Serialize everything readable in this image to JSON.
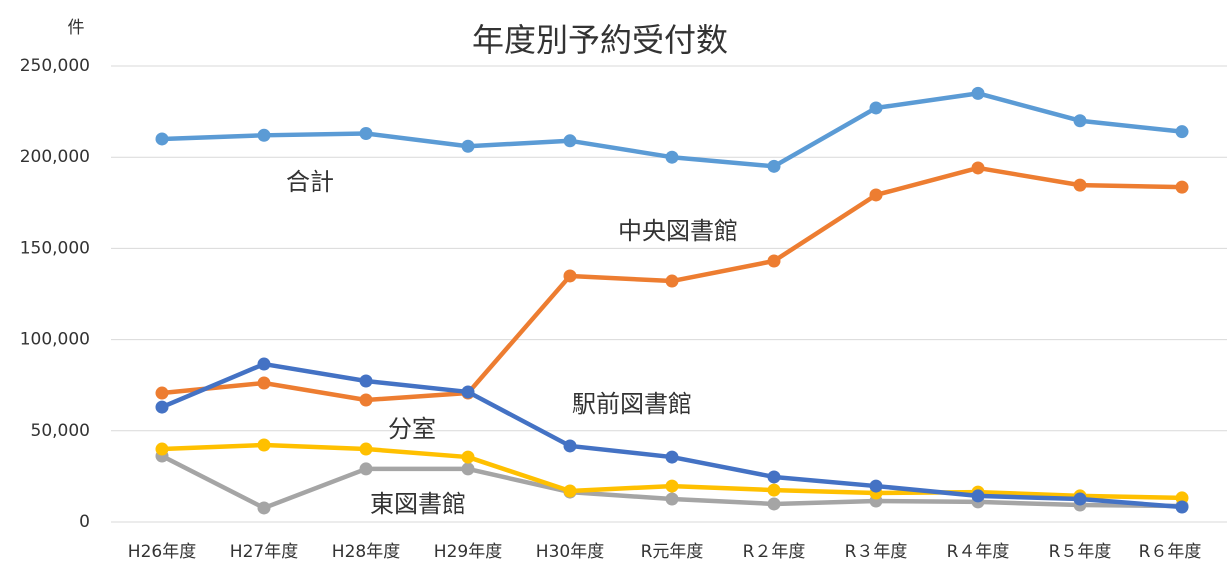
{
  "chart_data": {
    "type": "line",
    "title": "年度別予約受付数",
    "y_unit": "件",
    "categories": [
      "H26年度",
      "H27年度",
      "H28年度",
      "H29年度",
      "H30年度",
      "R元年度",
      "R２年度",
      "R３年度",
      "R４年度",
      "R５年度",
      "R６年度"
    ],
    "ylim": [
      0,
      250000
    ],
    "yticks": [
      {
        "value": 0,
        "label": "0"
      },
      {
        "value": 50000,
        "label": "50,000"
      },
      {
        "value": 100000,
        "label": "100,000"
      },
      {
        "value": 150000,
        "label": "150,000"
      },
      {
        "value": 200000,
        "label": "200,000"
      },
      {
        "value": 250000,
        "label": "250,000"
      }
    ],
    "grid": true,
    "series": [
      {
        "name": "合計",
        "color": "#5B9BD5",
        "values": [
          210000,
          212000,
          213000,
          206000,
          209000,
          200000,
          195000,
          227000,
          235000,
          220000,
          214000
        ]
      },
      {
        "name": "中央図書館",
        "color": "#ED7D31",
        "values": [
          70700,
          76200,
          66900,
          70700,
          134900,
          132100,
          143100,
          179300,
          194100,
          184700,
          183600
        ]
      },
      {
        "name": "東図書館",
        "color": "#A5A5A5",
        "values": [
          36200,
          7700,
          29100,
          29100,
          16400,
          12600,
          9900,
          11500,
          11000,
          9300,
          8800
        ]
      },
      {
        "name": "分室",
        "color": "#FFC000",
        "values": [
          40000,
          42200,
          40000,
          35600,
          17000,
          19700,
          17500,
          15900,
          16400,
          14300,
          13200
        ]
      },
      {
        "name": "駅前図書館",
        "color": "#4472C4",
        "values": [
          63000,
          86600,
          77300,
          71300,
          41700,
          35600,
          24700,
          19700,
          14300,
          12600,
          8200
        ]
      }
    ]
  }
}
